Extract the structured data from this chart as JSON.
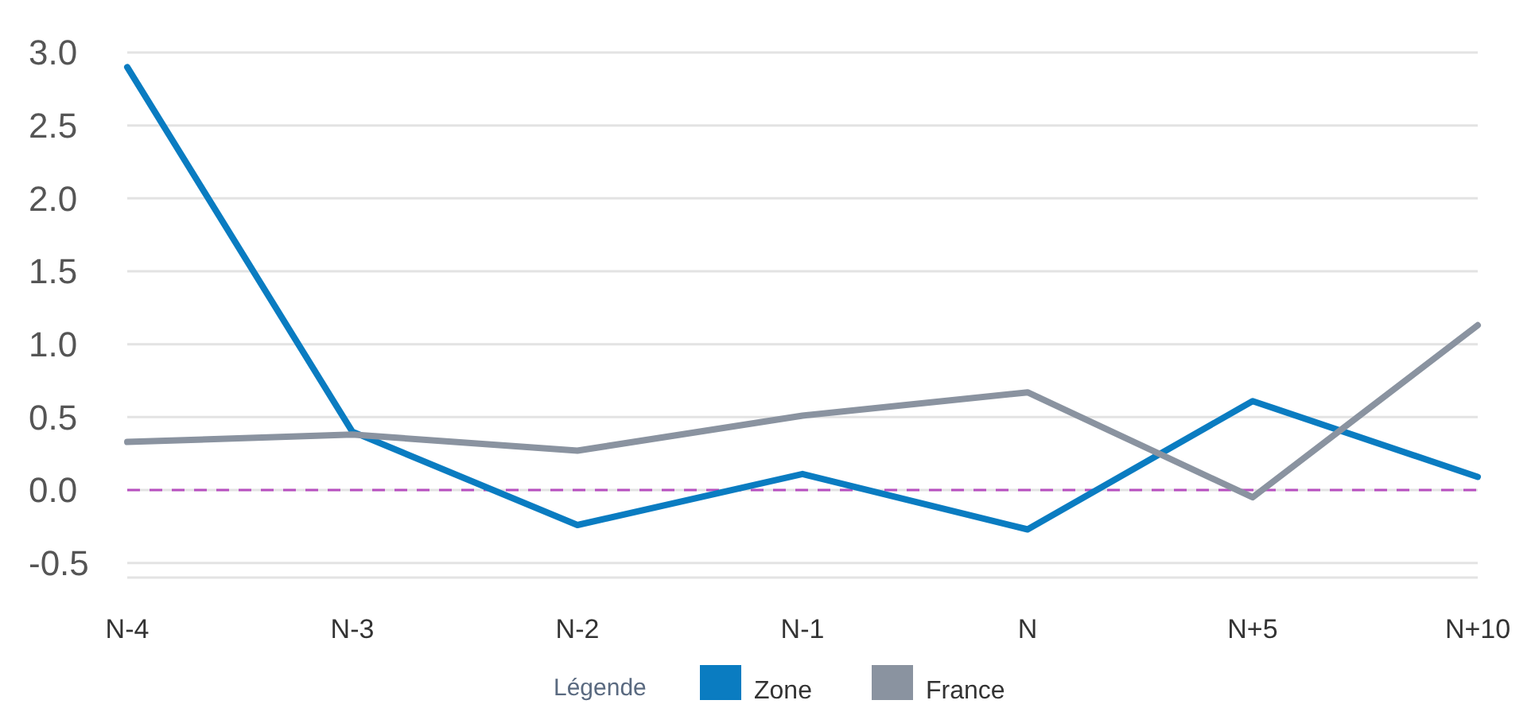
{
  "chart_data": {
    "type": "line",
    "categories": [
      "N-4",
      "N-3",
      "N-2",
      "N-1",
      "N",
      "N+5",
      "N+10"
    ],
    "series": [
      {
        "name": "Zone",
        "color": "#0a7cc1",
        "values": [
          2.9,
          0.4,
          -0.24,
          0.11,
          -0.27,
          0.61,
          0.09
        ]
      },
      {
        "name": "France",
        "color": "#8a93a0",
        "values": [
          0.33,
          0.38,
          0.27,
          0.51,
          0.67,
          -0.05,
          1.13
        ]
      }
    ],
    "ylim": [
      -0.6,
      3.0
    ],
    "yticks": [
      {
        "value": -0.5,
        "label": "-0.5"
      },
      {
        "value": 0,
        "label": "0.0"
      },
      {
        "value": 0.5,
        "label": "0.5"
      },
      {
        "value": 1,
        "label": "1.0"
      },
      {
        "value": 1.5,
        "label": "1.5"
      },
      {
        "value": 2,
        "label": "2.0"
      },
      {
        "value": 2.5,
        "label": "2.5"
      },
      {
        "value": 3,
        "label": "3.0"
      }
    ],
    "grid": "y",
    "legend": "bottom",
    "legend_title": "Légende",
    "marker": "none",
    "line_style": "solid",
    "ref_lines": [
      {
        "axis": "y",
        "value": 0,
        "color": "#b84fc0",
        "line_style": "dashed"
      }
    ]
  }
}
